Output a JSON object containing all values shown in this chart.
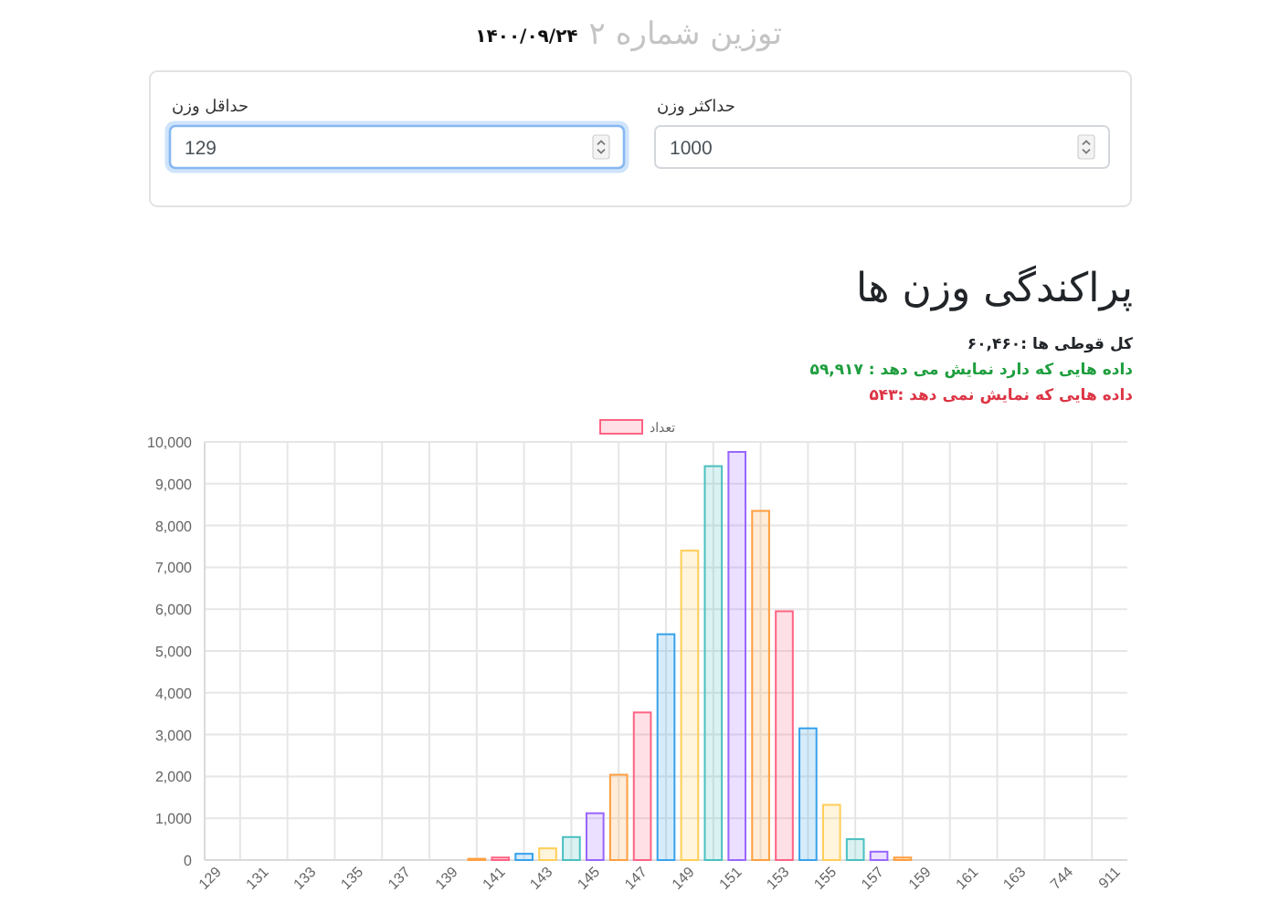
{
  "chart_data": [
    {
      "type": "other",
      "title": "توزین شماره ۲",
      "subtitle": "۱۴۰۰/۰۹/۲۴",
      "annotations": [
        "حداقل وزن",
        "129",
        "حداکثر وزن",
        "1000"
      ]
    },
    {
      "type": "bar",
      "title": "پراکندگی وزن ها",
      "annotations": [
        "کل قوطی ها :۶۰,۴۶۰",
        "داده هایی که دارد نمایش می دهد : ۵۹,۹۱۷",
        "داده هایی که نمایش نمی دهد :۵۴۳"
      ],
      "categories": [
        "129",
        null,
        "131",
        null,
        "133",
        null,
        "135",
        null,
        "137",
        null,
        "139",
        null,
        "141",
        null,
        "143",
        null,
        "145",
        null,
        "147",
        null,
        "149",
        null,
        "151",
        null,
        "153",
        null,
        "155",
        null,
        "157",
        null,
        "159",
        null,
        "161",
        null,
        "163",
        null,
        "744",
        null,
        "911"
      ],
      "series": [
        {
          "name": "تعداد",
          "color": "#ff6384",
          "colors": [
            null,
            null,
            null,
            null,
            null,
            null,
            null,
            null,
            null,
            null,
            null,
            "#ff9f40",
            "#ff6384",
            "#36a2eb",
            "#ffce56",
            "#4bc0c0",
            "#9966ff",
            "#ff9f40",
            "#ff6384",
            "#36a2eb",
            "#ffce56",
            "#4bc0c0",
            "#9966ff",
            "#ff9f40",
            "#ff6384",
            "#36a2eb",
            "#ffce56",
            "#4bc0c0",
            "#9966ff",
            "#ff9f40",
            null,
            null,
            null,
            null,
            null,
            null,
            null,
            null,
            null
          ],
          "values": [
            0,
            0,
            0,
            0,
            0,
            0,
            0,
            0,
            0,
            0,
            0,
            30,
            60,
            150,
            280,
            550,
            1120,
            2040,
            3530,
            5400,
            7400,
            9420,
            9760,
            8350,
            5950,
            3150,
            1320,
            500,
            200,
            60,
            0,
            0,
            0,
            0,
            0,
            0,
            0,
            0,
            0
          ]
        }
      ],
      "ylim": [
        0,
        10000
      ],
      "yticks": [
        0,
        {
          "value": 1000,
          "label": "1,000"
        },
        {
          "value": 2000,
          "label": "2,000"
        },
        {
          "value": 3000,
          "label": "3,000"
        },
        {
          "value": 4000,
          "label": "4,000"
        },
        {
          "value": 5000,
          "label": "5,000"
        },
        {
          "value": 6000,
          "label": "6,000"
        },
        {
          "value": 7000,
          "label": "7,000"
        },
        {
          "value": 8000,
          "label": "8,000"
        },
        {
          "value": 9000,
          "label": "9,000"
        },
        {
          "value": 10000,
          "label": "10,000"
        }
      ],
      "grid": true,
      "legend": "top"
    }
  ]
}
